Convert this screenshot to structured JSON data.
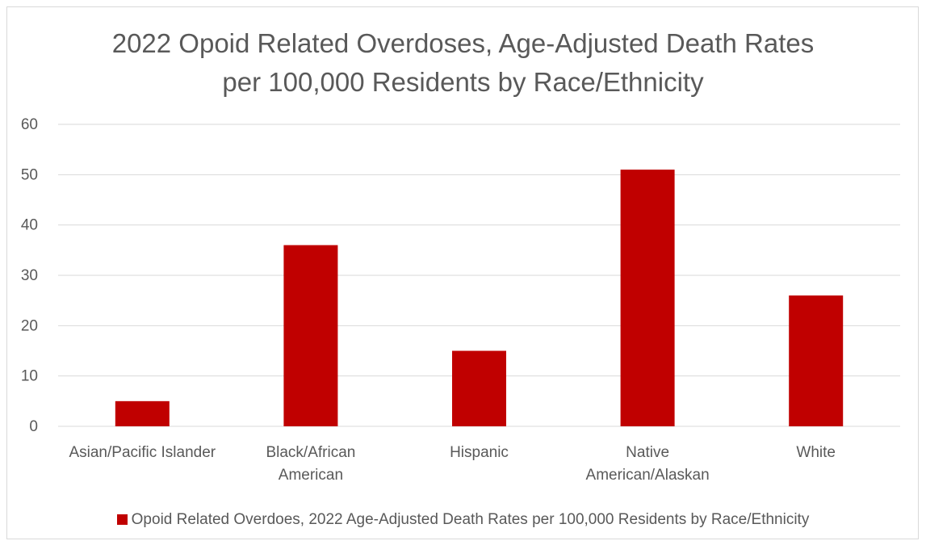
{
  "chart_data": {
    "type": "bar",
    "title_lines": [
      "2022 Opoid Related Overdoses, Age-Adjusted Death Rates",
      "per 100,000 Residents by Race/Ethnicity"
    ],
    "categories": [
      [
        "Asian/Pacific Islander"
      ],
      [
        "Black/African",
        "American"
      ],
      [
        "Hispanic"
      ],
      [
        "Native",
        "American/Alaskan"
      ],
      [
        "White"
      ]
    ],
    "series": [
      {
        "name": "Opoid Related Overdoes, 2022 Age-Adjusted Death Rates per 100,000 Residents by Race/Ethnicity",
        "values": [
          5,
          36,
          15,
          51,
          26
        ],
        "color": "#c00000"
      }
    ],
    "ylim": [
      0,
      60
    ],
    "yticks": [
      0,
      10,
      20,
      30,
      40,
      50,
      60
    ],
    "grid": true,
    "legend_position": "bottom",
    "colors": {
      "gridline": "#d9d9d9",
      "text": "#595959"
    }
  }
}
